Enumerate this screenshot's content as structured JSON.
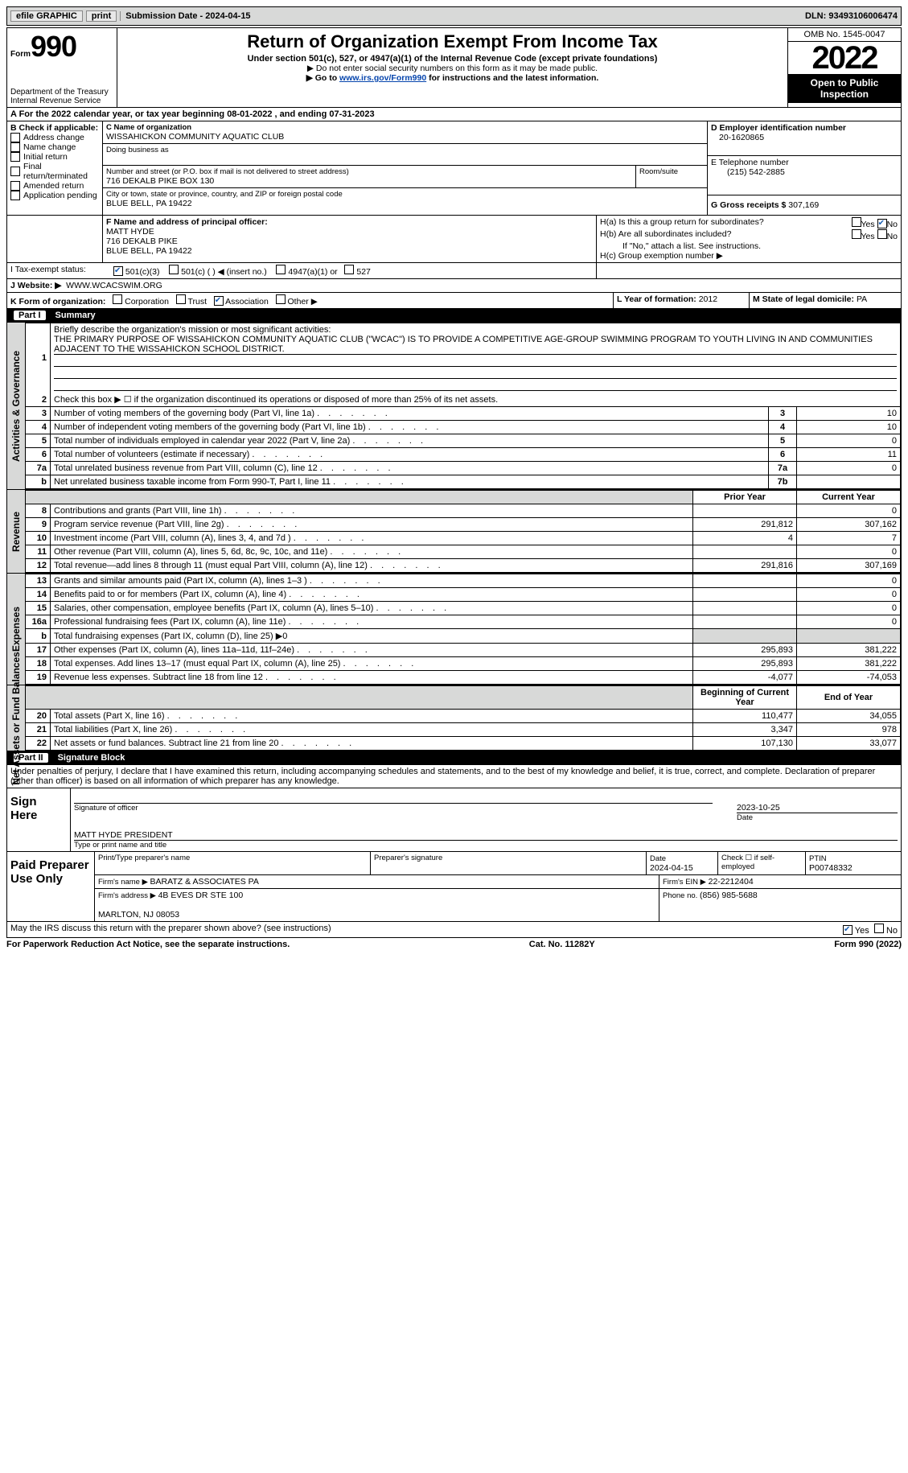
{
  "topbar": {
    "efile": "efile GRAPHIC",
    "print": "print",
    "sub_label": "Submission Date - ",
    "sub_date": "2024-04-15",
    "dln_label": "DLN: ",
    "dln": "93493106006474"
  },
  "header": {
    "form_word": "Form",
    "form_num": "990",
    "dept": "Department of the Treasury\nInternal Revenue Service",
    "title": "Return of Organization Exempt From Income Tax",
    "sub1": "Under section 501(c), 527, or 4947(a)(1) of the Internal Revenue Code (except private foundations)",
    "sub2": "▶ Do not enter social security numbers on this form as it may be made public.",
    "sub3_pre": "▶ Go to ",
    "sub3_link": "www.irs.gov/Form990",
    "sub3_post": " for instructions and the latest information.",
    "omb": "OMB No. 1545-0047",
    "year": "2022",
    "inspect": "Open to Public Inspection"
  },
  "sectionA": {
    "line": "A For the 2022 calendar year, or tax year beginning 08-01-2022    , and ending 07-31-2023",
    "B_label": "B Check if applicable:",
    "b_opts": [
      "Address change",
      "Name change",
      "Initial return",
      "Final return/terminated",
      "Amended return",
      "Application pending"
    ],
    "C_label": "C Name of organization",
    "org_name": "WISSAHICKON COMMUNITY AQUATIC CLUB",
    "dba_label": "Doing business as",
    "addr_label": "Number and street (or P.O. box if mail is not delivered to street address)",
    "room_label": "Room/suite",
    "street": "716 DEKALB PIKE BOX 130",
    "city_label": "City or town, state or province, country, and ZIP or foreign postal code",
    "city": "BLUE BELL, PA  19422",
    "D_label": "D Employer identification number",
    "ein": "20-1620865",
    "E_label": "E Telephone number",
    "phone": "(215) 542-2885",
    "G_label": "G Gross receipts $ ",
    "gross": "307,169",
    "F_label": "F  Name and address of principal officer:",
    "officer": "MATT HYDE\n716 DEKALB PIKE\nBLUE BELL, PA  19422",
    "Ha": "H(a)  Is this a group return for subordinates?",
    "Hb": "H(b)  Are all subordinates included?",
    "Hnote": "If \"No,\" attach a list. See instructions.",
    "Hc": "H(c)  Group exemption number ▶",
    "yes": "Yes",
    "no": "No",
    "I_label": "I  Tax-exempt status:",
    "i_opts": [
      "501(c)(3)",
      "501(c) (   ) ◀ (insert no.)",
      "4947(a)(1) or",
      "527"
    ],
    "J_label": "J  Website: ▶",
    "website": "WWW.WCACSWIM.ORG",
    "K_label": "K Form of organization:",
    "k_opts": [
      "Corporation",
      "Trust",
      "Association",
      "Other ▶"
    ],
    "L_label": "L Year of formation: ",
    "L_val": "2012",
    "M_label": "M State of legal domicile: ",
    "M_val": "PA"
  },
  "part1": {
    "hdr": "Part I",
    "title": "Summary",
    "line1_label": "Briefly describe the organization's mission or most significant activities:",
    "mission": "THE PRIMARY PURPOSE OF WISSAHICKON COMMUNITY AQUATIC CLUB (\"WCAC\") IS TO PROVIDE A COMPETITIVE AGE-GROUP SWIMMING PROGRAM TO YOUTH LIVING IN AND COMMUNITIES ADJACENT TO THE WISSAHICKON SCHOOL DISTRICT.",
    "line2": "Check this box ▶ ☐  if the organization discontinued its operations or disposed of more than 25% of its net assets.",
    "rows_gov": [
      {
        "n": "3",
        "t": "Number of voting members of the governing body (Part VI, line 1a)",
        "box": "3",
        "v": "10"
      },
      {
        "n": "4",
        "t": "Number of independent voting members of the governing body (Part VI, line 1b)",
        "box": "4",
        "v": "10"
      },
      {
        "n": "5",
        "t": "Total number of individuals employed in calendar year 2022 (Part V, line 2a)",
        "box": "5",
        "v": "0"
      },
      {
        "n": "6",
        "t": "Total number of volunteers (estimate if necessary)",
        "box": "6",
        "v": "11"
      },
      {
        "n": "7a",
        "t": "Total unrelated business revenue from Part VIII, column (C), line 12",
        "box": "7a",
        "v": "0"
      },
      {
        "n": "b",
        "t": "Net unrelated business taxable income from Form 990-T, Part I, line 11",
        "box": "7b",
        "v": ""
      }
    ],
    "col_prior": "Prior Year",
    "col_curr": "Current Year",
    "rows_rev": [
      {
        "n": "8",
        "t": "Contributions and grants (Part VIII, line 1h)",
        "p": "",
        "c": "0"
      },
      {
        "n": "9",
        "t": "Program service revenue (Part VIII, line 2g)",
        "p": "291,812",
        "c": "307,162"
      },
      {
        "n": "10",
        "t": "Investment income (Part VIII, column (A), lines 3, 4, and 7d )",
        "p": "4",
        "c": "7"
      },
      {
        "n": "11",
        "t": "Other revenue (Part VIII, column (A), lines 5, 6d, 8c, 9c, 10c, and 11e)",
        "p": "",
        "c": "0"
      },
      {
        "n": "12",
        "t": "Total revenue—add lines 8 through 11 (must equal Part VIII, column (A), line 12)",
        "p": "291,816",
        "c": "307,169"
      }
    ],
    "rows_exp": [
      {
        "n": "13",
        "t": "Grants and similar amounts paid (Part IX, column (A), lines 1–3 )",
        "p": "",
        "c": "0"
      },
      {
        "n": "14",
        "t": "Benefits paid to or for members (Part IX, column (A), line 4)",
        "p": "",
        "c": "0"
      },
      {
        "n": "15",
        "t": "Salaries, other compensation, employee benefits (Part IX, column (A), lines 5–10)",
        "p": "",
        "c": "0"
      },
      {
        "n": "16a",
        "t": "Professional fundraising fees (Part IX, column (A), line 11e)",
        "p": "",
        "c": "0"
      },
      {
        "n": "b",
        "t": "Total fundraising expenses (Part IX, column (D), line 25) ▶0",
        "p": "shade",
        "c": "shade"
      },
      {
        "n": "17",
        "t": "Other expenses (Part IX, column (A), lines 11a–11d, 11f–24e)",
        "p": "295,893",
        "c": "381,222"
      },
      {
        "n": "18",
        "t": "Total expenses. Add lines 13–17 (must equal Part IX, column (A), line 25)",
        "p": "295,893",
        "c": "381,222"
      },
      {
        "n": "19",
        "t": "Revenue less expenses. Subtract line 18 from line 12",
        "p": "-4,077",
        "c": "-74,053"
      }
    ],
    "col_beg": "Beginning of Current Year",
    "col_end": "End of Year",
    "rows_net": [
      {
        "n": "20",
        "t": "Total assets (Part X, line 16)",
        "p": "110,477",
        "c": "34,055"
      },
      {
        "n": "21",
        "t": "Total liabilities (Part X, line 26)",
        "p": "3,347",
        "c": "978"
      },
      {
        "n": "22",
        "t": "Net assets or fund balances. Subtract line 21 from line 20",
        "p": "107,130",
        "c": "33,077"
      }
    ],
    "tab_gov": "Activities & Governance",
    "tab_rev": "Revenue",
    "tab_exp": "Expenses",
    "tab_net": "Net Assets or Fund Balances"
  },
  "part2": {
    "hdr": "Part II",
    "title": "Signature Block",
    "decl": "Under penalties of perjury, I declare that I have examined this return, including accompanying schedules and statements, and to the best of my knowledge and belief, it is true, correct, and complete. Declaration of preparer (other than officer) is based on all information of which preparer has any knowledge.",
    "sign_here": "Sign Here",
    "sig_officer": "Signature of officer",
    "sig_date": "Date",
    "sig_date_v": "2023-10-25",
    "sig_name": "MATT HYDE  PRESIDENT",
    "sig_name_lbl": "Type or print name and title",
    "paid": "Paid Preparer Use Only",
    "prep_name_lbl": "Print/Type preparer's name",
    "prep_sig_lbl": "Preparer's signature",
    "prep_date_lbl": "Date",
    "prep_date_v": "2024-04-15",
    "self_emp": "Check ☐ if self-employed",
    "ptin_lbl": "PTIN",
    "ptin": "P00748332",
    "firm_name_lbl": "Firm's name      ▶ ",
    "firm_name": "BARATZ & ASSOCIATES PA",
    "firm_ein_lbl": "Firm's EIN ▶ ",
    "firm_ein": "22-2212404",
    "firm_addr_lbl": "Firm's address ▶ ",
    "firm_addr": "4B EVES DR STE 100\n\nMARLTON, NJ  08053",
    "firm_phone_lbl": "Phone no. ",
    "firm_phone": "(856) 985-5688",
    "discuss": "May the IRS discuss this return with the preparer shown above? (see instructions)"
  },
  "footer": {
    "pra": "For Paperwork Reduction Act Notice, see the separate instructions.",
    "cat": "Cat. No. 11282Y",
    "form": "Form 990 (2022)"
  }
}
